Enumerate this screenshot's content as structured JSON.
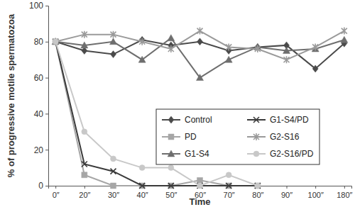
{
  "chart_data": {
    "type": "line",
    "x_label": "Time",
    "y_label": "% of progressive motile spermatozoa",
    "categories": [
      "0″",
      "20″",
      "30″",
      "40″",
      "50″",
      "60″",
      "70″",
      "80″",
      "90″",
      "100″",
      "180″"
    ],
    "ylim": [
      0,
      100
    ],
    "yticks": [
      0,
      20,
      40,
      60,
      80,
      100
    ],
    "grid": false,
    "legend": "lower right",
    "series": [
      {
        "name": "Control",
        "color": "#4a4a4a",
        "marker": "diamond",
        "values": [
          80,
          75,
          73,
          81,
          78,
          80,
          75,
          77,
          78,
          65,
          79
        ]
      },
      {
        "name": "PD",
        "color": "#a6a6a6",
        "marker": "square",
        "values": [
          80,
          6,
          0,
          0,
          0,
          3,
          0,
          0,
          null,
          null,
          null
        ]
      },
      {
        "name": "G1-S4",
        "color": "#6e6e6e",
        "marker": "triangle",
        "values": [
          80,
          78,
          80,
          70,
          82,
          60,
          70,
          77,
          75,
          76,
          81
        ]
      },
      {
        "name": "G1-S4/PD",
        "color": "#3a3a3a",
        "marker": "x",
        "values": [
          80,
          12,
          8,
          0,
          0,
          0,
          0,
          0,
          null,
          null,
          null
        ]
      },
      {
        "name": "G2-S16",
        "color": "#9a9a9a",
        "marker": "asterisk",
        "values": [
          80,
          84,
          84,
          80,
          76,
          86,
          77,
          76,
          70,
          77,
          86
        ]
      },
      {
        "name": "G2-S16/PD",
        "color": "#c8c8c8",
        "marker": "circle",
        "values": [
          80,
          30,
          15,
          10,
          10,
          0,
          6,
          0,
          null,
          null,
          null
        ]
      }
    ]
  }
}
